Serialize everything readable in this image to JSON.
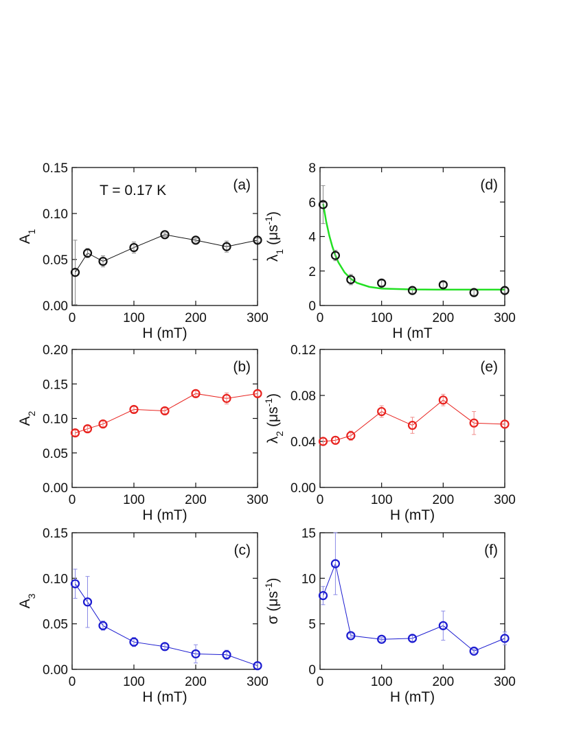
{
  "chart_data": [
    {
      "type": "scatter",
      "panel": "(a)",
      "annotation": "T = 0.17 K",
      "xlabel": "H (mT)",
      "ylabel": [
        {
          "text": "A"
        },
        {
          "text": "1",
          "shift": "sub"
        }
      ],
      "x": [
        5,
        25,
        50,
        100,
        150,
        200,
        250,
        300
      ],
      "values": [
        0.036,
        0.057,
        0.048,
        0.063,
        0.077,
        0.071,
        0.064,
        0.071
      ],
      "errors": [
        0.035,
        0.005,
        0.006,
        0.006,
        0.002,
        0.002,
        0.006,
        0.002
      ],
      "color": "#111111",
      "error_color": "#888888",
      "xlim": [
        0,
        300
      ],
      "xticks": [
        0,
        100,
        200,
        300
      ],
      "ylim": [
        0,
        0.15
      ],
      "yticks": [
        {
          "value": 0,
          "label": "0.00"
        },
        {
          "value": 0.05,
          "label": "0.05"
        },
        {
          "value": 0.1,
          "label": "0.10"
        },
        {
          "value": 0.15,
          "label": "0.15"
        }
      ]
    },
    {
      "type": "scatter",
      "panel": "(b)",
      "xlabel": "H (mT)",
      "ylabel": [
        {
          "text": "A"
        },
        {
          "text": "2",
          "shift": "sub"
        }
      ],
      "x": [
        5,
        25,
        50,
        100,
        150,
        200,
        250,
        300
      ],
      "values": [
        0.079,
        0.085,
        0.092,
        0.113,
        0.111,
        0.136,
        0.129,
        0.136
      ],
      "errors": [
        0.004,
        0.004,
        0.004,
        0.004,
        0.004,
        0.004,
        0.008,
        0.004
      ],
      "color": "#e8231f",
      "error_color": "#f08a88",
      "xlim": [
        0,
        300
      ],
      "xticks": [
        0,
        100,
        200,
        300
      ],
      "ylim": [
        0,
        0.2
      ],
      "yticks": [
        {
          "value": 0,
          "label": "0.00"
        },
        {
          "value": 0.05,
          "label": "0.05"
        },
        {
          "value": 0.1,
          "label": "0.10"
        },
        {
          "value": 0.15,
          "label": "0.15"
        },
        {
          "value": 0.2,
          "label": "0.20"
        }
      ]
    },
    {
      "type": "scatter",
      "panel": "(c)",
      "xlabel": "H (mT)",
      "ylabel": [
        {
          "text": "A"
        },
        {
          "text": "3",
          "shift": "sub"
        }
      ],
      "x": [
        5,
        25,
        50,
        100,
        150,
        200,
        250,
        300
      ],
      "values": [
        0.094,
        0.074,
        0.048,
        0.03,
        0.025,
        0.017,
        0.016,
        0.004
      ],
      "errors": [
        0.016,
        0.028,
        0.005,
        0.005,
        0.003,
        0.01,
        0.005,
        0.003
      ],
      "color": "#1a1ad0",
      "error_color": "#8a8ae6",
      "xlim": [
        0,
        300
      ],
      "xticks": [
        0,
        100,
        200,
        300
      ],
      "ylim": [
        0,
        0.15
      ],
      "yticks": [
        {
          "value": 0,
          "label": "0.00"
        },
        {
          "value": 0.05,
          "label": "0.05"
        },
        {
          "value": 0.1,
          "label": "0.10"
        },
        {
          "value": 0.15,
          "label": "0.15"
        }
      ]
    },
    {
      "type": "fit",
      "panel": "(d)",
      "xlabel": "H (mT",
      "ylabel": [
        {
          "text": "λ"
        },
        {
          "text": "1",
          "shift": "sub"
        },
        {
          "text": " (μs"
        },
        {
          "text": "-1",
          "shift": "super"
        },
        {
          "text": ")"
        }
      ],
      "x": [
        5,
        25,
        50,
        100,
        150,
        200,
        250,
        300
      ],
      "values": [
        5.85,
        2.9,
        1.5,
        1.3,
        0.87,
        1.2,
        0.75,
        0.87
      ],
      "errors": [
        1.1,
        0.3,
        0.3,
        0.15,
        0.15,
        0.15,
        0.15,
        0.15
      ],
      "color": "#111111",
      "error_color": "#888888",
      "fit": {
        "x": [
          5,
          10,
          15,
          20,
          25,
          30,
          40,
          50,
          60,
          80,
          100,
          150,
          200,
          250,
          300
        ],
        "values": [
          5.9,
          4.87,
          4.06,
          3.42,
          2.9,
          2.49,
          1.91,
          1.55,
          1.31,
          1.08,
          0.98,
          0.93,
          0.92,
          0.92,
          0.92
        ],
        "color": "#22e022"
      },
      "xlim": [
        0,
        300
      ],
      "xticks": [
        0,
        100,
        200,
        300
      ],
      "ylim": [
        0,
        8
      ],
      "yticks": [
        0,
        2,
        4,
        6,
        8
      ]
    },
    {
      "type": "scatter",
      "panel": "(e)",
      "xlabel": "H (mT)",
      "ylabel": [
        {
          "text": "λ"
        },
        {
          "text": "2",
          "shift": "sub"
        },
        {
          "text": " (μs"
        },
        {
          "text": "-1",
          "shift": "super"
        },
        {
          "text": ")"
        }
      ],
      "x": [
        5,
        25,
        50,
        100,
        150,
        200,
        250,
        300
      ],
      "values": [
        0.04,
        0.041,
        0.045,
        0.066,
        0.054,
        0.076,
        0.056,
        0.055
      ],
      "errors": [
        0.003,
        0.003,
        0.004,
        0.005,
        0.007,
        0.005,
        0.01,
        0.003
      ],
      "color": "#e8231f",
      "error_color": "#f08a88",
      "xlim": [
        0,
        300
      ],
      "xticks": [
        0,
        100,
        200,
        300
      ],
      "ylim": [
        0,
        0.12
      ],
      "yticks": [
        {
          "value": 0,
          "label": "0.00"
        },
        {
          "value": 0.04,
          "label": "0.04"
        },
        {
          "value": 0.08,
          "label": "0.08"
        },
        {
          "value": 0.12,
          "label": "0.12"
        }
      ]
    },
    {
      "type": "scatter",
      "panel": "(f)",
      "xlabel": "H (mT)",
      "ylabel": [
        {
          "text": "σ (μs"
        },
        {
          "text": "-1",
          "shift": "super"
        },
        {
          "text": ")"
        }
      ],
      "x": [
        5,
        25,
        50,
        100,
        150,
        200,
        250,
        300
      ],
      "values": [
        8.1,
        11.6,
        3.7,
        3.3,
        3.4,
        4.8,
        2.0,
        3.4
      ],
      "errors": [
        1.0,
        3.4,
        0.2,
        0.2,
        0.3,
        1.6,
        0.2,
        0.7
      ],
      "color": "#1a1ad0",
      "error_color": "#8a8ae6",
      "xlim": [
        0,
        300
      ],
      "xticks": [
        0,
        100,
        200,
        300
      ],
      "ylim": [
        0,
        15
      ],
      "yticks": [
        0,
        5,
        10,
        15
      ]
    }
  ]
}
